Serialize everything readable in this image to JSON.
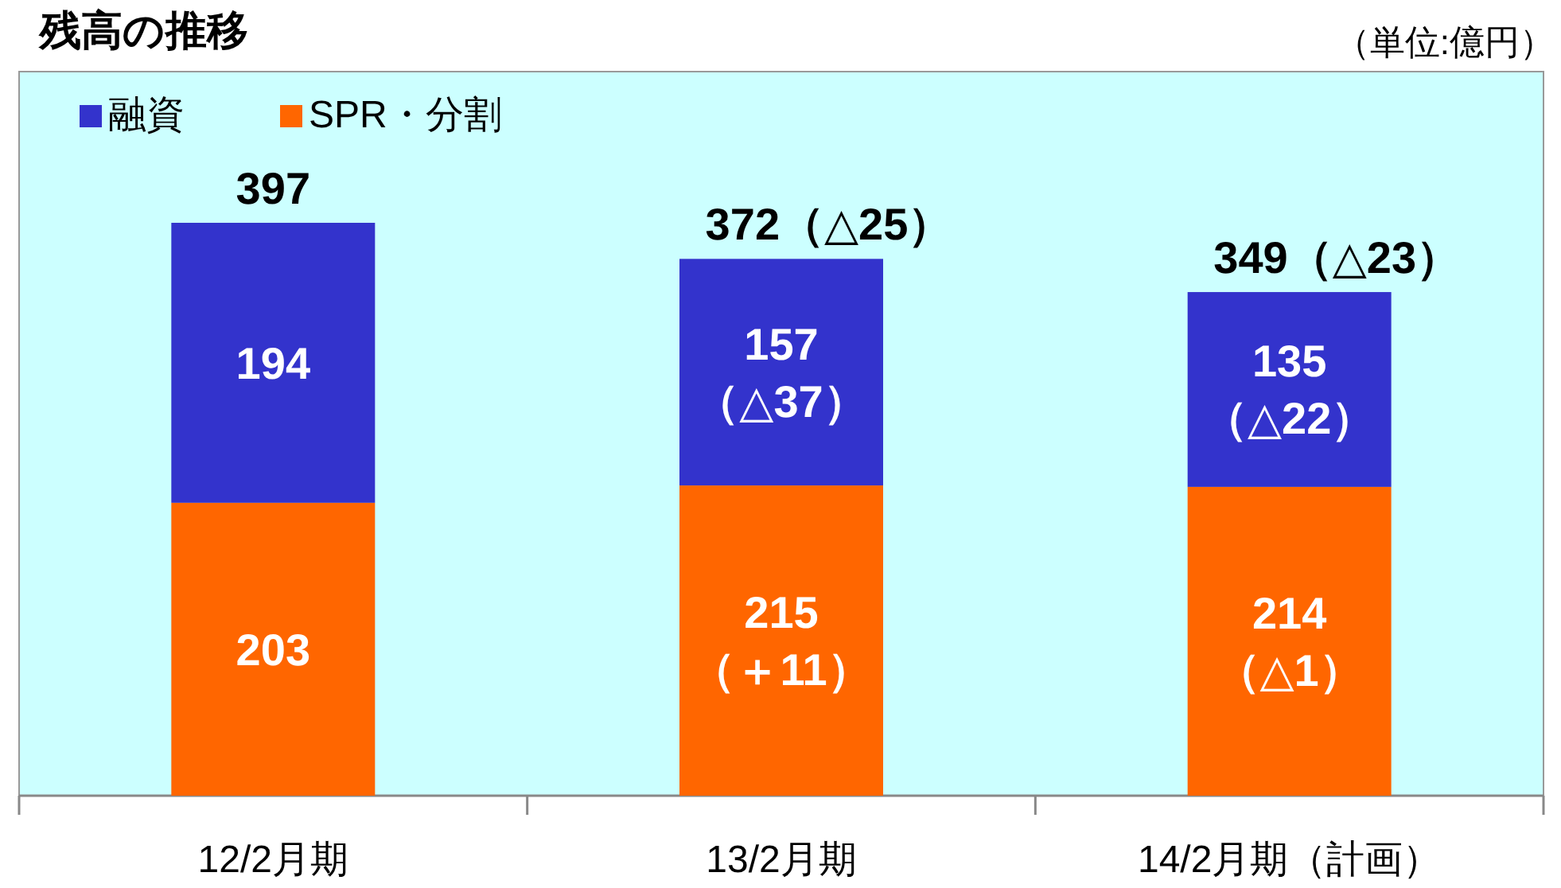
{
  "chart_data": {
    "type": "bar",
    "title": "残高の推移",
    "annotations": [
      "（単位:億円）"
    ],
    "categories": [
      "12/2月期",
      "13/2月期",
      "14/2月期（計画）"
    ],
    "stacked": true,
    "legend": "top left",
    "series": [
      {
        "name": "SPR・分割",
        "color": "#ff6600",
        "values": [
          203,
          215,
          214
        ],
        "value_labels": [
          "203",
          "215\n（＋11）",
          "214\n（△1）"
        ]
      },
      {
        "name": "融資",
        "color": "#3333cc",
        "values": [
          194,
          157,
          135
        ],
        "value_labels": [
          "194",
          "157\n（△37）",
          "135\n（△22）"
        ]
      }
    ],
    "totals": [
      "397",
      "372（△25）",
      "349（△23）"
    ]
  }
}
